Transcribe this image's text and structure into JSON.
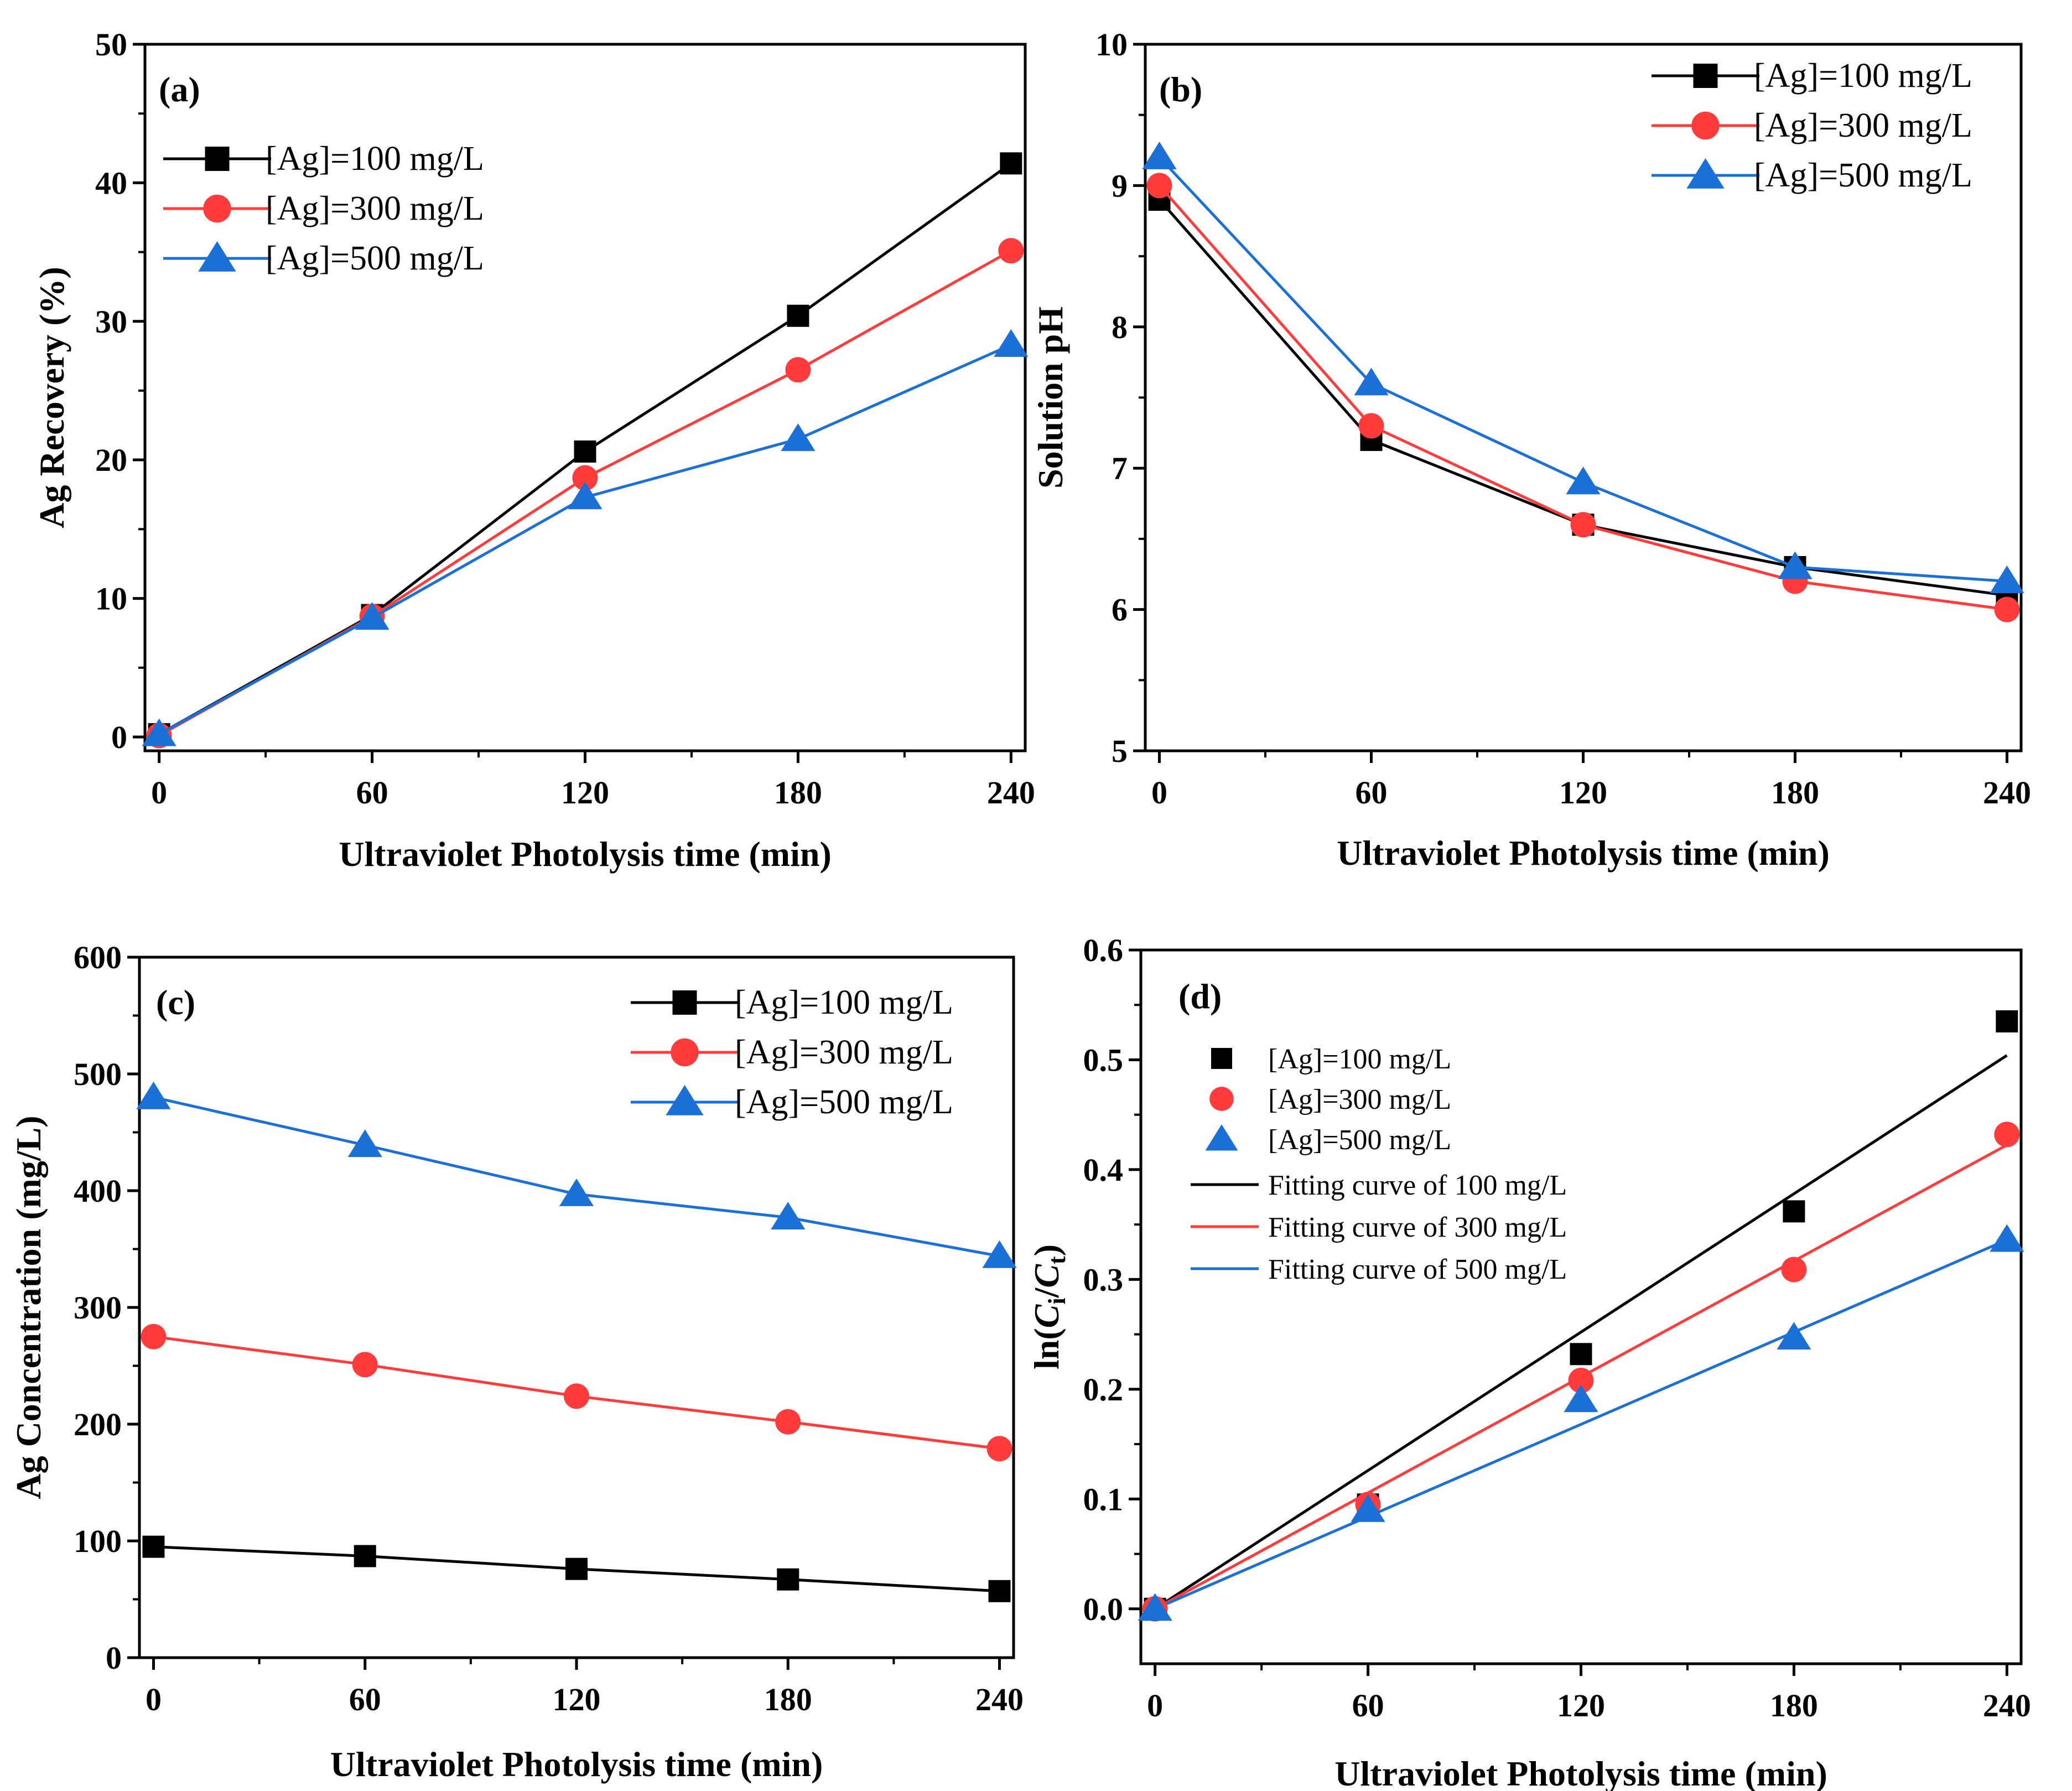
{
  "colors": {
    "s100": "#000000",
    "s300": "#ff3b3b",
    "s500": "#1a70d6"
  },
  "chart_data": [
    {
      "type": "line",
      "panel_label": "(a)",
      "xlabel": "Ultraviolet Photolysis time (min)",
      "ylabel": "Ag Recovery (%)",
      "x": [
        0,
        60,
        120,
        180,
        240
      ],
      "xticks": [
        "0",
        "60",
        "120",
        "180",
        "240"
      ],
      "yticks": [
        "0",
        "10",
        "20",
        "30",
        "40",
        "50"
      ],
      "xlim": [
        -4,
        244
      ],
      "ylim": [
        -1,
        50
      ],
      "legend_position": "upper-left",
      "series": [
        {
          "name": "[Ag]=100 mg/L",
          "marker": "square",
          "values": [
            0.2,
            8.8,
            20.6,
            30.4,
            41.4
          ]
        },
        {
          "name": "[Ag]=300 mg/L",
          "marker": "circle",
          "values": [
            0.1,
            8.7,
            18.7,
            26.5,
            35.1
          ]
        },
        {
          "name": "[Ag]=500 mg/L",
          "marker": "triangle",
          "values": [
            0.2,
            8.6,
            17.3,
            21.5,
            28.3
          ]
        }
      ]
    },
    {
      "type": "line",
      "panel_label": "(b)",
      "xlabel": "Ultraviolet Photolysis time (min)",
      "ylabel": "Solution pH",
      "x": [
        0,
        60,
        120,
        180,
        240
      ],
      "xticks": [
        "0",
        "60",
        "120",
        "180",
        "240"
      ],
      "yticks": [
        "5",
        "6",
        "7",
        "8",
        "9",
        "10"
      ],
      "xlim": [
        -4,
        244
      ],
      "ylim": [
        5,
        10
      ],
      "legend_position": "top-right",
      "series": [
        {
          "name": "[Ag]=100 mg/L",
          "marker": "square",
          "values": [
            8.9,
            7.2,
            6.6,
            6.3,
            6.1
          ]
        },
        {
          "name": "[Ag]=300 mg/L",
          "marker": "circle",
          "values": [
            9.0,
            7.3,
            6.6,
            6.2,
            6.0
          ]
        },
        {
          "name": "[Ag]=500 mg/L",
          "marker": "triangle",
          "values": [
            9.2,
            7.6,
            6.9,
            6.3,
            6.2
          ]
        }
      ]
    },
    {
      "type": "line",
      "panel_label": "(c)",
      "xlabel": "Ultraviolet Photolysis time (min)",
      "ylabel": "Ag Concentration (mg/L)",
      "x": [
        0,
        60,
        120,
        180,
        240
      ],
      "xticks": [
        "0",
        "60",
        "120",
        "180",
        "240"
      ],
      "yticks": [
        "0",
        "100",
        "200",
        "300",
        "400",
        "500",
        "600"
      ],
      "xlim": [
        -4,
        244
      ],
      "ylim": [
        0,
        600
      ],
      "legend_position": "top-right",
      "series": [
        {
          "name": "[Ag]=100 mg/L",
          "marker": "square",
          "values": [
            95,
            87,
            76,
            67,
            57
          ]
        },
        {
          "name": "[Ag]=300 mg/L",
          "marker": "circle",
          "values": [
            275,
            251,
            224,
            202,
            179
          ]
        },
        {
          "name": "[Ag]=500 mg/L",
          "marker": "triangle",
          "values": [
            480,
            439,
            397,
            377,
            344
          ]
        }
      ]
    },
    {
      "type": "scatter",
      "panel_label": "(d)",
      "xlabel": "Ultraviolet Photolysis time (min)",
      "ylabel_prefix": "ln(",
      "ylabel_ci": "C",
      "ylabel_ci_sub": "i",
      "ylabel_slash": "/",
      "ylabel_ct": "C",
      "ylabel_ct_sub": "t",
      "ylabel_suffix": ")",
      "x": [
        0,
        60,
        120,
        180,
        240
      ],
      "xticks": [
        "0",
        "60",
        "120",
        "180",
        "240"
      ],
      "yticks": [
        "0.0",
        "0.1",
        "0.2",
        "0.3",
        "0.4",
        "0.5",
        "0.6"
      ],
      "xlim": [
        -4,
        244
      ],
      "ylim": [
        -0.05,
        0.6
      ],
      "legend_position": "upper-left",
      "series": [
        {
          "name": "[Ag]=100 mg/L",
          "marker": "square",
          "values": [
            0.0,
            0.095,
            0.232,
            0.362,
            0.535
          ]
        },
        {
          "name": "[Ag]=300 mg/L",
          "marker": "circle",
          "values": [
            0.0,
            0.095,
            0.208,
            0.309,
            0.432
          ]
        },
        {
          "name": "[Ag]=500 mg/L",
          "marker": "triangle",
          "values": [
            0.0,
            0.09,
            0.19,
            0.247,
            0.336
          ]
        }
      ],
      "fits": [
        {
          "name": "Fitting curve of 100 mg/L",
          "slope": 0.0021,
          "intercept": 0.0
        },
        {
          "name": "Fitting curve of 300 mg/L",
          "slope": 0.00176,
          "intercept": 0.0
        },
        {
          "name": "Fitting curve of 500 mg/L",
          "slope": 0.0014,
          "intercept": 0.0
        }
      ]
    }
  ]
}
